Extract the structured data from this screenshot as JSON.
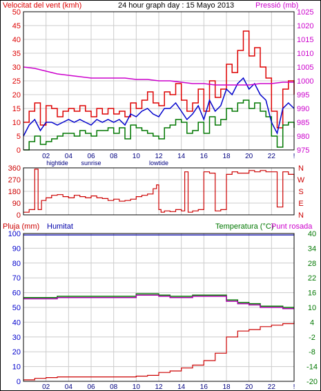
{
  "colors": {
    "wind": "#dd0000",
    "gust_avg": "#0000cc",
    "wind_low": "#007700",
    "pressure": "#cc00cc",
    "direction": "#cc0000",
    "rain": "#cc0000",
    "humidity": "#0000aa",
    "temperature": "#007700",
    "dew": "#aa00aa",
    "grid": "#cccccc",
    "frame": "#000000"
  },
  "chart_data": [
    {
      "type": "line",
      "title": "24 hour graph day : 15 Mayo 2013",
      "ylabel_left": "Velocitat del vent (kmh)",
      "ylabel_right": "Pressió (mb)",
      "ylim_left": [
        0,
        50
      ],
      "ylim_right": [
        975,
        1025
      ],
      "yticks_left": [
        0,
        5,
        10,
        15,
        20,
        25,
        30,
        35,
        40,
        45,
        50
      ],
      "yticks_right": [
        975,
        980,
        985,
        990,
        995,
        1000,
        1005,
        1010,
        1015,
        1020,
        1025
      ],
      "x_tick_labels": [
        "02",
        "04",
        "06",
        "08",
        "10",
        "12",
        "14",
        "16",
        "18",
        "20",
        "22"
      ],
      "x_tick_labels_low": [
        "hightide",
        "sunrise",
        "lowtide"
      ],
      "x_tick_label_tail": "!",
      "series": [
        {
          "key": "wind_max",
          "x": [
            0,
            0.5,
            1,
            1.5,
            2,
            2.5,
            3,
            3.5,
            4,
            4.5,
            5,
            5.5,
            6,
            6.5,
            7,
            7.5,
            8,
            8.5,
            9,
            9.5,
            10,
            10.5,
            11,
            11.5,
            12,
            12.5,
            13,
            13.5,
            14,
            14.5,
            15,
            15.5,
            16,
            16.5,
            17,
            17.5,
            18,
            18.5,
            19,
            19.5,
            20,
            20.5,
            21,
            21.5,
            22,
            22.5,
            23,
            23.5,
            24
          ],
          "values": [
            10,
            14,
            17,
            9,
            16,
            15,
            12,
            14,
            15,
            14,
            16,
            14,
            12,
            15,
            13,
            15,
            13,
            14,
            12,
            17,
            15,
            18,
            21,
            17,
            16,
            21,
            20,
            24,
            18,
            14,
            17,
            22,
            14,
            25,
            19,
            22,
            31,
            28,
            36,
            43,
            34,
            37,
            30,
            26,
            14,
            8,
            22,
            25,
            20
          ]
        },
        {
          "key": "wind_avg",
          "x": [
            0,
            0.5,
            1,
            1.5,
            2,
            2.5,
            3,
            3.5,
            4,
            4.5,
            5,
            5.5,
            6,
            6.5,
            7,
            7.5,
            8,
            8.5,
            9,
            9.5,
            10,
            10.5,
            11,
            11.5,
            12,
            12.5,
            13,
            13.5,
            14,
            14.5,
            15,
            15.5,
            16,
            16.5,
            17,
            17.5,
            18,
            18.5,
            19,
            19.5,
            20,
            20.5,
            21,
            21.5,
            22,
            22.5,
            23,
            23.5,
            24
          ],
          "values": [
            5,
            9,
            11,
            7,
            10,
            10,
            9,
            10,
            11,
            10,
            11,
            10,
            9,
            11,
            10,
            11,
            10,
            11,
            9,
            13,
            12,
            14,
            15,
            13,
            12,
            15,
            15,
            17,
            14,
            11,
            13,
            16,
            11,
            18,
            14,
            16,
            22,
            20,
            24,
            26,
            22,
            24,
            20,
            18,
            10,
            6,
            15,
            17,
            15
          ]
        },
        {
          "key": "wind_min",
          "x": [
            0,
            0.5,
            1,
            1.5,
            2,
            2.5,
            3,
            3.5,
            4,
            4.5,
            5,
            5.5,
            6,
            6.5,
            7,
            7.5,
            8,
            8.5,
            9,
            9.5,
            10,
            10.5,
            11,
            11.5,
            12,
            12.5,
            13,
            13.5,
            14,
            14.5,
            15,
            15.5,
            16,
            16.5,
            17,
            17.5,
            18,
            18.5,
            19,
            19.5,
            20,
            20.5,
            21,
            21.5,
            22,
            22.5,
            23,
            23.5,
            24
          ],
          "values": [
            0,
            3,
            5,
            2,
            3,
            4,
            5,
            6,
            6,
            5,
            7,
            6,
            5,
            7,
            7,
            8,
            6,
            8,
            4,
            9,
            8,
            7,
            6,
            5,
            4,
            8,
            9,
            11,
            10,
            6,
            7,
            10,
            6,
            12,
            9,
            11,
            15,
            14,
            17,
            18,
            15,
            17,
            14,
            12,
            5,
            1,
            9,
            10,
            8
          ]
        },
        {
          "key": "pressure",
          "x": [
            0,
            1,
            2,
            3,
            4,
            5,
            6,
            7,
            8,
            9,
            10,
            11,
            12,
            13,
            14,
            15,
            16,
            17,
            18,
            19,
            20,
            21,
            22,
            23,
            24
          ],
          "values": [
            1005,
            1004.5,
            1003.5,
            1002.5,
            1002,
            1001.5,
            1001,
            1001,
            1001,
            1001,
            1000.5,
            1000.5,
            1000,
            1000,
            999.5,
            999,
            999,
            998.5,
            998.5,
            998.5,
            998.5,
            999,
            999,
            999.5,
            999.5
          ]
        }
      ]
    },
    {
      "type": "line",
      "ylim": [
        0,
        360
      ],
      "yticks": [
        0,
        90,
        180,
        270,
        360
      ],
      "ylabel_right": [
        "N",
        "W",
        "S",
        "E",
        "N"
      ],
      "series": [
        {
          "key": "direction",
          "x": [
            0,
            0.5,
            1,
            1.3,
            1.6,
            2,
            2.5,
            3,
            3.5,
            4,
            4.5,
            5,
            5.5,
            6,
            6.5,
            7,
            7.5,
            8,
            8.5,
            9,
            9.5,
            10,
            10.5,
            11,
            11.5,
            11.8,
            12,
            12.2,
            12.5,
            13,
            13.5,
            14,
            14.3,
            14.6,
            15,
            15.5,
            16,
            16.5,
            17,
            17.5,
            18,
            18.5,
            19,
            19.5,
            20,
            20.5,
            21,
            21.5,
            22,
            22.5,
            23,
            23.5,
            24
          ],
          "values": [
            20,
            40,
            350,
            40,
            110,
            130,
            150,
            155,
            140,
            130,
            150,
            140,
            130,
            145,
            130,
            125,
            110,
            120,
            105,
            110,
            120,
            140,
            150,
            160,
            200,
            230,
            40,
            20,
            30,
            25,
            40,
            30,
            330,
            20,
            30,
            40,
            330,
            320,
            30,
            40,
            310,
            330,
            320,
            320,
            340,
            330,
            340,
            330,
            330,
            60,
            330,
            310,
            280
          ]
        }
      ]
    },
    {
      "type": "line",
      "ylabel_left": "Pluja (mm)",
      "ylabel_left2": "Humitat",
      "ylabel_right": "Temperatura (°C)",
      "ylabel_right2": "Punt rosada",
      "ylim_left": [
        0,
        100
      ],
      "ylim_right": [
        -20,
        40
      ],
      "yticks_left": [
        0,
        10,
        20,
        30,
        40,
        50,
        60,
        70,
        80,
        90,
        100
      ],
      "yticks_right": [
        -20,
        -14,
        -8,
        -2,
        4,
        10,
        16,
        22,
        28,
        34,
        40
      ],
      "series": [
        {
          "key": "rain",
          "x": [
            0,
            1,
            2,
            3,
            4,
            5,
            6,
            7,
            8,
            9,
            10,
            11,
            12,
            13,
            14,
            15,
            16,
            17,
            18,
            19,
            20,
            21,
            22,
            23,
            24
          ],
          "values": [
            1,
            2,
            2.5,
            3,
            3,
            3,
            3,
            3,
            3,
            3,
            3.5,
            4,
            6,
            7,
            9,
            11,
            14,
            19,
            30,
            34,
            35,
            37,
            38,
            39,
            41
          ]
        },
        {
          "key": "humidity",
          "x": [
            0,
            24
          ],
          "values": [
            99,
            99
          ]
        },
        {
          "key": "temperature",
          "x": [
            0,
            1,
            2,
            3,
            4,
            5,
            6,
            7,
            8,
            9,
            10,
            11,
            12,
            13,
            14,
            15,
            16,
            17,
            18,
            19,
            20,
            21,
            22,
            23,
            24
          ],
          "values": [
            14,
            14,
            14,
            14.5,
            14.5,
            14.5,
            14.5,
            14.5,
            14.5,
            14.5,
            15.5,
            15.5,
            15,
            14.5,
            14.5,
            15,
            15,
            15,
            13,
            12,
            11.5,
            10.5,
            10.5,
            10,
            10
          ]
        },
        {
          "key": "dew",
          "x": [
            0,
            1,
            2,
            3,
            4,
            5,
            6,
            7,
            8,
            9,
            10,
            11,
            12,
            13,
            14,
            15,
            16,
            17,
            18,
            19,
            20,
            21,
            22,
            23,
            24
          ],
          "values": [
            13.5,
            13.5,
            13.5,
            14,
            14,
            14,
            14,
            14,
            14,
            14,
            15,
            15,
            14.5,
            14,
            14,
            14.5,
            14.5,
            14.5,
            12.5,
            11.5,
            11,
            10,
            10,
            9.5,
            9.5
          ]
        }
      ]
    }
  ]
}
